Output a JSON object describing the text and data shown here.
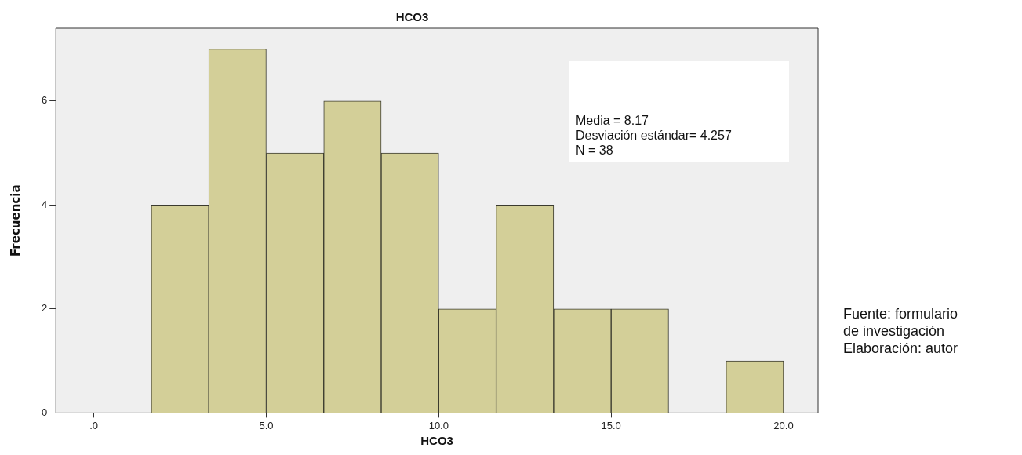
{
  "chart_data": {
    "type": "histogram",
    "title": "HCO3",
    "xlabel": "HCO3",
    "ylabel": "Frecuencia",
    "bins": [
      1.667,
      3.333,
      5,
      6.667,
      8.333,
      10,
      11.667,
      13.333,
      15,
      16.667,
      18.333,
      20
    ],
    "values": [
      4,
      7,
      5,
      6,
      5,
      2,
      4,
      2,
      2,
      0,
      1
    ],
    "color": "#d3cf98",
    "xlim": [
      -1.1,
      21.0
    ],
    "xticks": [
      {
        "value": 0,
        "label": ".0"
      },
      {
        "value": 5,
        "label": "5.0"
      },
      {
        "value": 10,
        "label": "10.0"
      },
      {
        "value": 15,
        "label": "15.0"
      },
      {
        "value": 20,
        "label": "20.0"
      }
    ],
    "ylim": [
      0,
      7.4
    ],
    "yticks": [
      0,
      2,
      4,
      6
    ],
    "grid": false,
    "legend": false,
    "annotations": [
      "Media = 8.17\nDesviación estándar= 4.257\nN = 38",
      "Fuente: formulario\nde investigación\nElaboración: autor"
    ]
  }
}
